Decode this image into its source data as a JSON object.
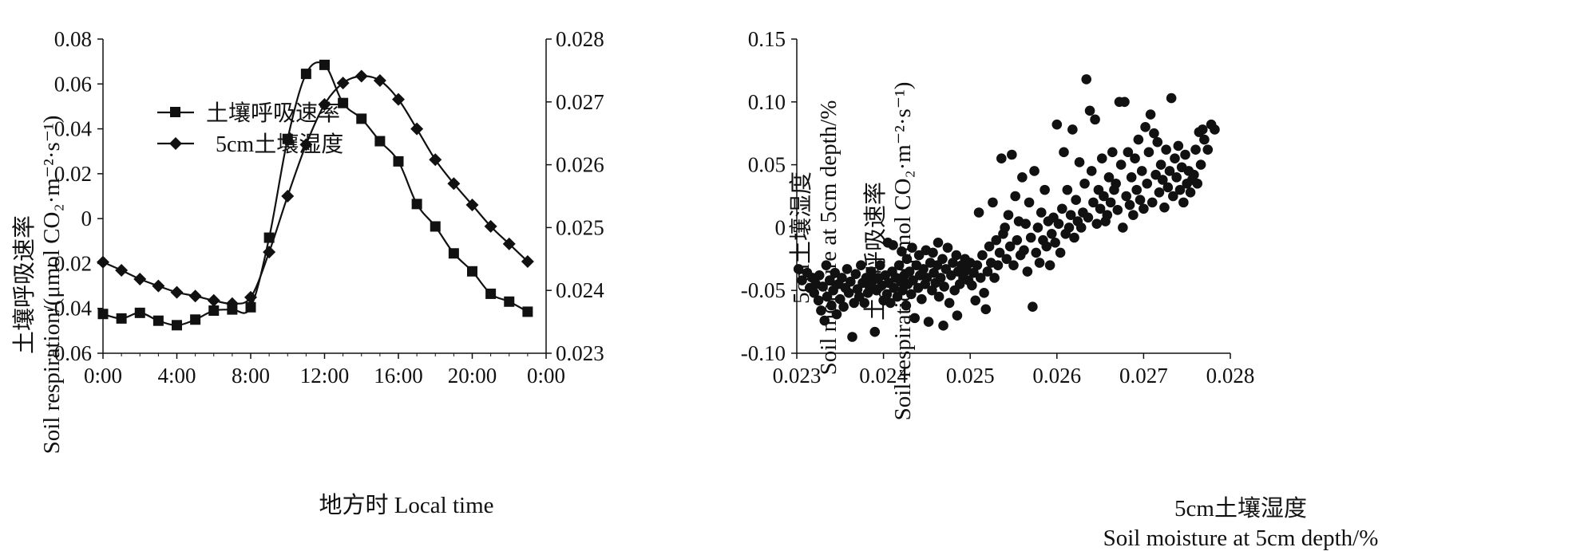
{
  "chart_data": [
    {
      "type": "line",
      "xlabel": "地方时 Local time",
      "ylabel": "Soil respiration/(μmol CO₂·m⁻²·s⁻¹)",
      "ylabel_cn": "土壤呼吸速率",
      "y2label": "Soil moisture at 5cm depth/%",
      "y2label_cn": "5cm土壤湿度",
      "x_ticks": [
        "0:00",
        "4:00",
        "8:00",
        "12:00",
        "16:00",
        "20:00",
        "0:00"
      ],
      "xlim": [
        0,
        24
      ],
      "ylim": [
        -0.06,
        0.08
      ],
      "y_ticks": [
        "-0.06",
        "-0.04",
        "-0.02",
        "0",
        "0.02",
        "0.04",
        "0.06",
        "0.08"
      ],
      "y2lim": [
        0.023,
        0.028
      ],
      "y2_ticks": [
        "0.023",
        "0.024",
        "0.025",
        "0.026",
        "0.027",
        "0.028"
      ],
      "legend_position": "top-left",
      "series": [
        {
          "name": "土壤呼吸速率",
          "marker": "square",
          "axis": "left",
          "x": [
            0,
            1,
            2,
            3,
            4,
            5,
            6,
            7,
            8,
            9,
            10,
            11,
            12,
            13,
            14,
            15,
            16,
            17,
            18,
            19,
            20,
            21,
            22,
            23
          ],
          "values": [
            -0.0425,
            -0.0445,
            -0.042,
            -0.0455,
            -0.0475,
            -0.045,
            -0.041,
            -0.0405,
            -0.0395,
            -0.0085,
            0.0355,
            0.0645,
            0.0685,
            0.0515,
            0.0445,
            0.0345,
            0.0255,
            0.0065,
            -0.0035,
            -0.0155,
            -0.0235,
            -0.0335,
            -0.037,
            -0.0415
          ]
        },
        {
          "name": "5cm土壤湿度",
          "marker": "diamond",
          "axis": "right",
          "x": [
            0,
            1,
            2,
            3,
            4,
            5,
            6,
            7,
            8,
            9,
            10,
            11,
            12,
            13,
            14,
            15,
            16,
            17,
            18,
            19,
            20,
            21,
            22,
            23
          ],
          "values": [
            0.02445,
            0.02432,
            0.02418,
            0.02407,
            0.02397,
            0.02391,
            0.02384,
            0.02379,
            0.02389,
            0.02461,
            0.0255,
            0.02632,
            0.02696,
            0.0273,
            0.02741,
            0.02734,
            0.02704,
            0.02657,
            0.02608,
            0.0257,
            0.02536,
            0.02502,
            0.02474,
            0.02446
          ]
        }
      ]
    },
    {
      "type": "scatter",
      "xlabel": "Soil moisture at 5cm depth/%",
      "xlabel_cn": "5cm土壤湿度",
      "ylabel": "Soil respiration/(μmol CO₂·m⁻²·s⁻¹)",
      "ylabel_cn": "土壤呼吸速率",
      "xlim": [
        0.023,
        0.028
      ],
      "x_ticks": [
        "0.023",
        "0.024",
        "0.025",
        "0.026",
        "0.027",
        "0.028"
      ],
      "ylim": [
        -0.1,
        0.15
      ],
      "y_ticks": [
        "-0.10",
        "-0.05",
        "0",
        "0.05",
        "0.10",
        "0.15"
      ],
      "points": [
        [
          0.02302,
          -0.033
        ],
        [
          0.02306,
          -0.042
        ],
        [
          0.02312,
          -0.036
        ],
        [
          0.02315,
          -0.048
        ],
        [
          0.02318,
          -0.04
        ],
        [
          0.0232,
          -0.052
        ],
        [
          0.02322,
          -0.045
        ],
        [
          0.02325,
          -0.058
        ],
        [
          0.02326,
          -0.038
        ],
        [
          0.02328,
          -0.066
        ],
        [
          0.0233,
          -0.047
        ],
        [
          0.02332,
          -0.074
        ],
        [
          0.02334,
          -0.03
        ],
        [
          0.02335,
          -0.055
        ],
        [
          0.02338,
          -0.042
        ],
        [
          0.0234,
          -0.062
        ],
        [
          0.02342,
          -0.05
        ],
        [
          0.02344,
          -0.036
        ],
        [
          0.02346,
          -0.069
        ],
        [
          0.02348,
          -0.045
        ],
        [
          0.0235,
          -0.057
        ],
        [
          0.02352,
          -0.04
        ],
        [
          0.02354,
          -0.063
        ],
        [
          0.02356,
          -0.048
        ],
        [
          0.02358,
          -0.033
        ],
        [
          0.0236,
          -0.052
        ],
        [
          0.02362,
          -0.043
        ],
        [
          0.02364,
          -0.087
        ],
        [
          0.02366,
          -0.06
        ],
        [
          0.02368,
          -0.037
        ],
        [
          0.0237,
          -0.049
        ],
        [
          0.02372,
          -0.055
        ],
        [
          0.02374,
          -0.03
        ],
        [
          0.02376,
          -0.044
        ],
        [
          0.02378,
          -0.06
        ],
        [
          0.0238,
          -0.04
        ],
        [
          0.02382,
          -0.052
        ],
        [
          0.02384,
          -0.047
        ],
        [
          0.02386,
          -0.035
        ],
        [
          0.02388,
          -0.042
        ],
        [
          0.0239,
          -0.083
        ],
        [
          0.02392,
          -0.05
        ],
        [
          0.02394,
          -0.04
        ],
        [
          0.02396,
          -0.03
        ],
        [
          0.02398,
          -0.046
        ],
        [
          0.024,
          -0.058
        ],
        [
          0.02402,
          -0.038
        ],
        [
          0.02404,
          -0.053
        ],
        [
          0.02405,
          -0.012
        ],
        [
          0.02406,
          -0.044
        ],
        [
          0.02408,
          -0.06
        ],
        [
          0.0241,
          -0.035
        ],
        [
          0.02411,
          -0.014
        ],
        [
          0.02412,
          -0.048
        ],
        [
          0.02414,
          -0.04
        ],
        [
          0.02416,
          -0.055
        ],
        [
          0.02418,
          -0.03
        ],
        [
          0.0242,
          -0.043
        ],
        [
          0.02421,
          -0.019
        ],
        [
          0.02422,
          -0.05
        ],
        [
          0.02424,
          -0.038
        ],
        [
          0.02426,
          -0.062
        ],
        [
          0.02427,
          -0.025
        ],
        [
          0.02428,
          -0.045
        ],
        [
          0.0243,
          -0.035
        ],
        [
          0.02432,
          -0.053
        ],
        [
          0.02433,
          -0.016
        ],
        [
          0.02434,
          -0.042
        ],
        [
          0.02436,
          -0.072
        ],
        [
          0.02438,
          -0.03
        ],
        [
          0.0244,
          -0.048
        ],
        [
          0.02441,
          -0.022
        ],
        [
          0.02442,
          -0.038
        ],
        [
          0.02444,
          -0.057
        ],
        [
          0.02446,
          -0.033
        ],
        [
          0.02448,
          -0.045
        ],
        [
          0.02449,
          -0.018
        ],
        [
          0.0245,
          -0.04
        ],
        [
          0.02452,
          -0.075
        ],
        [
          0.02454,
          -0.028
        ],
        [
          0.02456,
          -0.05
        ],
        [
          0.02457,
          -0.02
        ],
        [
          0.02458,
          -0.036
        ],
        [
          0.0246,
          -0.044
        ],
        [
          0.02462,
          -0.03
        ],
        [
          0.02463,
          -0.012
        ],
        [
          0.02464,
          -0.055
        ],
        [
          0.02466,
          -0.04
        ],
        [
          0.02468,
          -0.025
        ],
        [
          0.02469,
          -0.078
        ],
        [
          0.0247,
          -0.047
        ],
        [
          0.02472,
          -0.033
        ],
        [
          0.02474,
          -0.016
        ],
        [
          0.02476,
          -0.06
        ],
        [
          0.02478,
          -0.038
        ],
        [
          0.0248,
          -0.028
        ],
        [
          0.02482,
          -0.05
        ],
        [
          0.02484,
          -0.022
        ],
        [
          0.02485,
          -0.07
        ],
        [
          0.02486,
          -0.035
        ],
        [
          0.02488,
          -0.045
        ],
        [
          0.0249,
          -0.03
        ],
        [
          0.02492,
          -0.04
        ],
        [
          0.02494,
          -0.025
        ],
        [
          0.02496,
          -0.034
        ],
        [
          0.02498,
          -0.042
        ],
        [
          0.025,
          -0.028
        ],
        [
          0.02502,
          -0.046
        ],
        [
          0.02504,
          -0.036
        ],
        [
          0.02506,
          -0.058
        ],
        [
          0.02508,
          -0.03
        ],
        [
          0.0251,
          0.012
        ],
        [
          0.02512,
          -0.04
        ],
        [
          0.02514,
          -0.022
        ],
        [
          0.02516,
          -0.052
        ],
        [
          0.02518,
          -0.065
        ],
        [
          0.0252,
          -0.035
        ],
        [
          0.02522,
          -0.015
        ],
        [
          0.02524,
          -0.028
        ],
        [
          0.02526,
          0.02
        ],
        [
          0.02528,
          -0.04
        ],
        [
          0.0253,
          -0.01
        ],
        [
          0.02532,
          -0.03
        ],
        [
          0.02534,
          -0.02
        ],
        [
          0.02536,
          0.055
        ],
        [
          0.02538,
          -0.005
        ],
        [
          0.0254,
          0.0
        ],
        [
          0.02542,
          -0.025
        ],
        [
          0.02544,
          0.01
        ],
        [
          0.02546,
          -0.015
        ],
        [
          0.02548,
          0.058
        ],
        [
          0.0255,
          -0.03
        ],
        [
          0.02552,
          0.025
        ],
        [
          0.02554,
          -0.01
        ],
        [
          0.02556,
          0.005
        ],
        [
          0.02558,
          -0.022
        ],
        [
          0.0256,
          0.04
        ],
        [
          0.02562,
          -0.018
        ],
        [
          0.02564,
          0.003
        ],
        [
          0.02566,
          -0.035
        ],
        [
          0.02568,
          0.02
        ],
        [
          0.0257,
          -0.008
        ],
        [
          0.02572,
          -0.063
        ],
        [
          0.02574,
          0.045
        ],
        [
          0.02576,
          -0.02
        ],
        [
          0.02578,
          0.0
        ],
        [
          0.0258,
          -0.028
        ],
        [
          0.02582,
          0.012
        ],
        [
          0.02584,
          -0.01
        ],
        [
          0.02586,
          0.03
        ],
        [
          0.02588,
          -0.015
        ],
        [
          0.0259,
          0.005
        ],
        [
          0.02592,
          -0.03
        ],
        [
          0.02594,
          -0.005
        ],
        [
          0.02596,
          0.008
        ],
        [
          0.02598,
          -0.012
        ],
        [
          0.026,
          0.082
        ],
        [
          0.02602,
          0.003
        ],
        [
          0.02604,
          -0.02
        ],
        [
          0.02606,
          0.015
        ],
        [
          0.02608,
          0.06
        ],
        [
          0.0261,
          -0.005
        ],
        [
          0.02612,
          0.03
        ],
        [
          0.02614,
          0.0
        ],
        [
          0.02616,
          0.01
        ],
        [
          0.02618,
          0.078
        ],
        [
          0.0262,
          -0.008
        ],
        [
          0.02622,
          0.022
        ],
        [
          0.02624,
          0.005
        ],
        [
          0.02626,
          0.052
        ],
        [
          0.02628,
          0.0
        ],
        [
          0.0263,
          0.012
        ],
        [
          0.02632,
          0.035
        ],
        [
          0.02634,
          0.118
        ],
        [
          0.02636,
          0.008
        ],
        [
          0.02638,
          0.093
        ],
        [
          0.0264,
          0.045
        ],
        [
          0.02642,
          0.02
        ],
        [
          0.02644,
          0.086
        ],
        [
          0.02646,
          0.003
        ],
        [
          0.02648,
          0.03
        ],
        [
          0.0265,
          0.015
        ],
        [
          0.02652,
          0.055
        ],
        [
          0.02654,
          0.025
        ],
        [
          0.02656,
          0.005
        ],
        [
          0.02658,
          0.01
        ],
        [
          0.0266,
          0.04
        ],
        [
          0.02662,
          0.02
        ],
        [
          0.02664,
          0.06
        ],
        [
          0.02666,
          0.03
        ],
        [
          0.02668,
          0.035
        ],
        [
          0.0267,
          0.014
        ],
        [
          0.02672,
          0.1
        ],
        [
          0.02674,
          0.05
        ],
        [
          0.02676,
          0.0
        ],
        [
          0.02678,
          0.1
        ],
        [
          0.0268,
          0.025
        ],
        [
          0.02682,
          0.06
        ],
        [
          0.02684,
          0.018
        ],
        [
          0.02686,
          0.04
        ],
        [
          0.02688,
          0.01
        ],
        [
          0.0269,
          0.055
        ],
        [
          0.02692,
          0.03
        ],
        [
          0.02694,
          0.07
        ],
        [
          0.02696,
          0.022
        ],
        [
          0.02698,
          0.045
        ],
        [
          0.027,
          0.015
        ],
        [
          0.02702,
          0.08
        ],
        [
          0.02704,
          0.035
        ],
        [
          0.02706,
          0.06
        ],
        [
          0.02708,
          0.09
        ],
        [
          0.0271,
          0.02
        ],
        [
          0.02712,
          0.075
        ],
        [
          0.02714,
          0.042
        ],
        [
          0.02716,
          0.068
        ],
        [
          0.02718,
          0.028
        ],
        [
          0.0272,
          0.05
        ],
        [
          0.02722,
          0.038
        ],
        [
          0.02724,
          0.016
        ],
        [
          0.02726,
          0.062
        ],
        [
          0.02728,
          0.032
        ],
        [
          0.0273,
          0.045
        ],
        [
          0.02732,
          0.103
        ],
        [
          0.02734,
          0.025
        ],
        [
          0.02736,
          0.055
        ],
        [
          0.02738,
          0.04
        ],
        [
          0.0274,
          0.065
        ],
        [
          0.02742,
          0.03
        ],
        [
          0.02744,
          0.048
        ],
        [
          0.02746,
          0.02
        ],
        [
          0.02748,
          0.058
        ],
        [
          0.0275,
          0.035
        ],
        [
          0.02752,
          0.045
        ],
        [
          0.02754,
          0.028
        ],
        [
          0.02756,
          0.038
        ],
        [
          0.02758,
          0.042
        ],
        [
          0.0276,
          0.062
        ],
        [
          0.02762,
          0.035
        ],
        [
          0.02764,
          0.076
        ],
        [
          0.02766,
          0.05
        ],
        [
          0.02768,
          0.078
        ],
        [
          0.0277,
          0.07
        ],
        [
          0.02774,
          0.062
        ],
        [
          0.02778,
          0.082
        ],
        [
          0.02782,
          0.078
        ]
      ]
    }
  ]
}
